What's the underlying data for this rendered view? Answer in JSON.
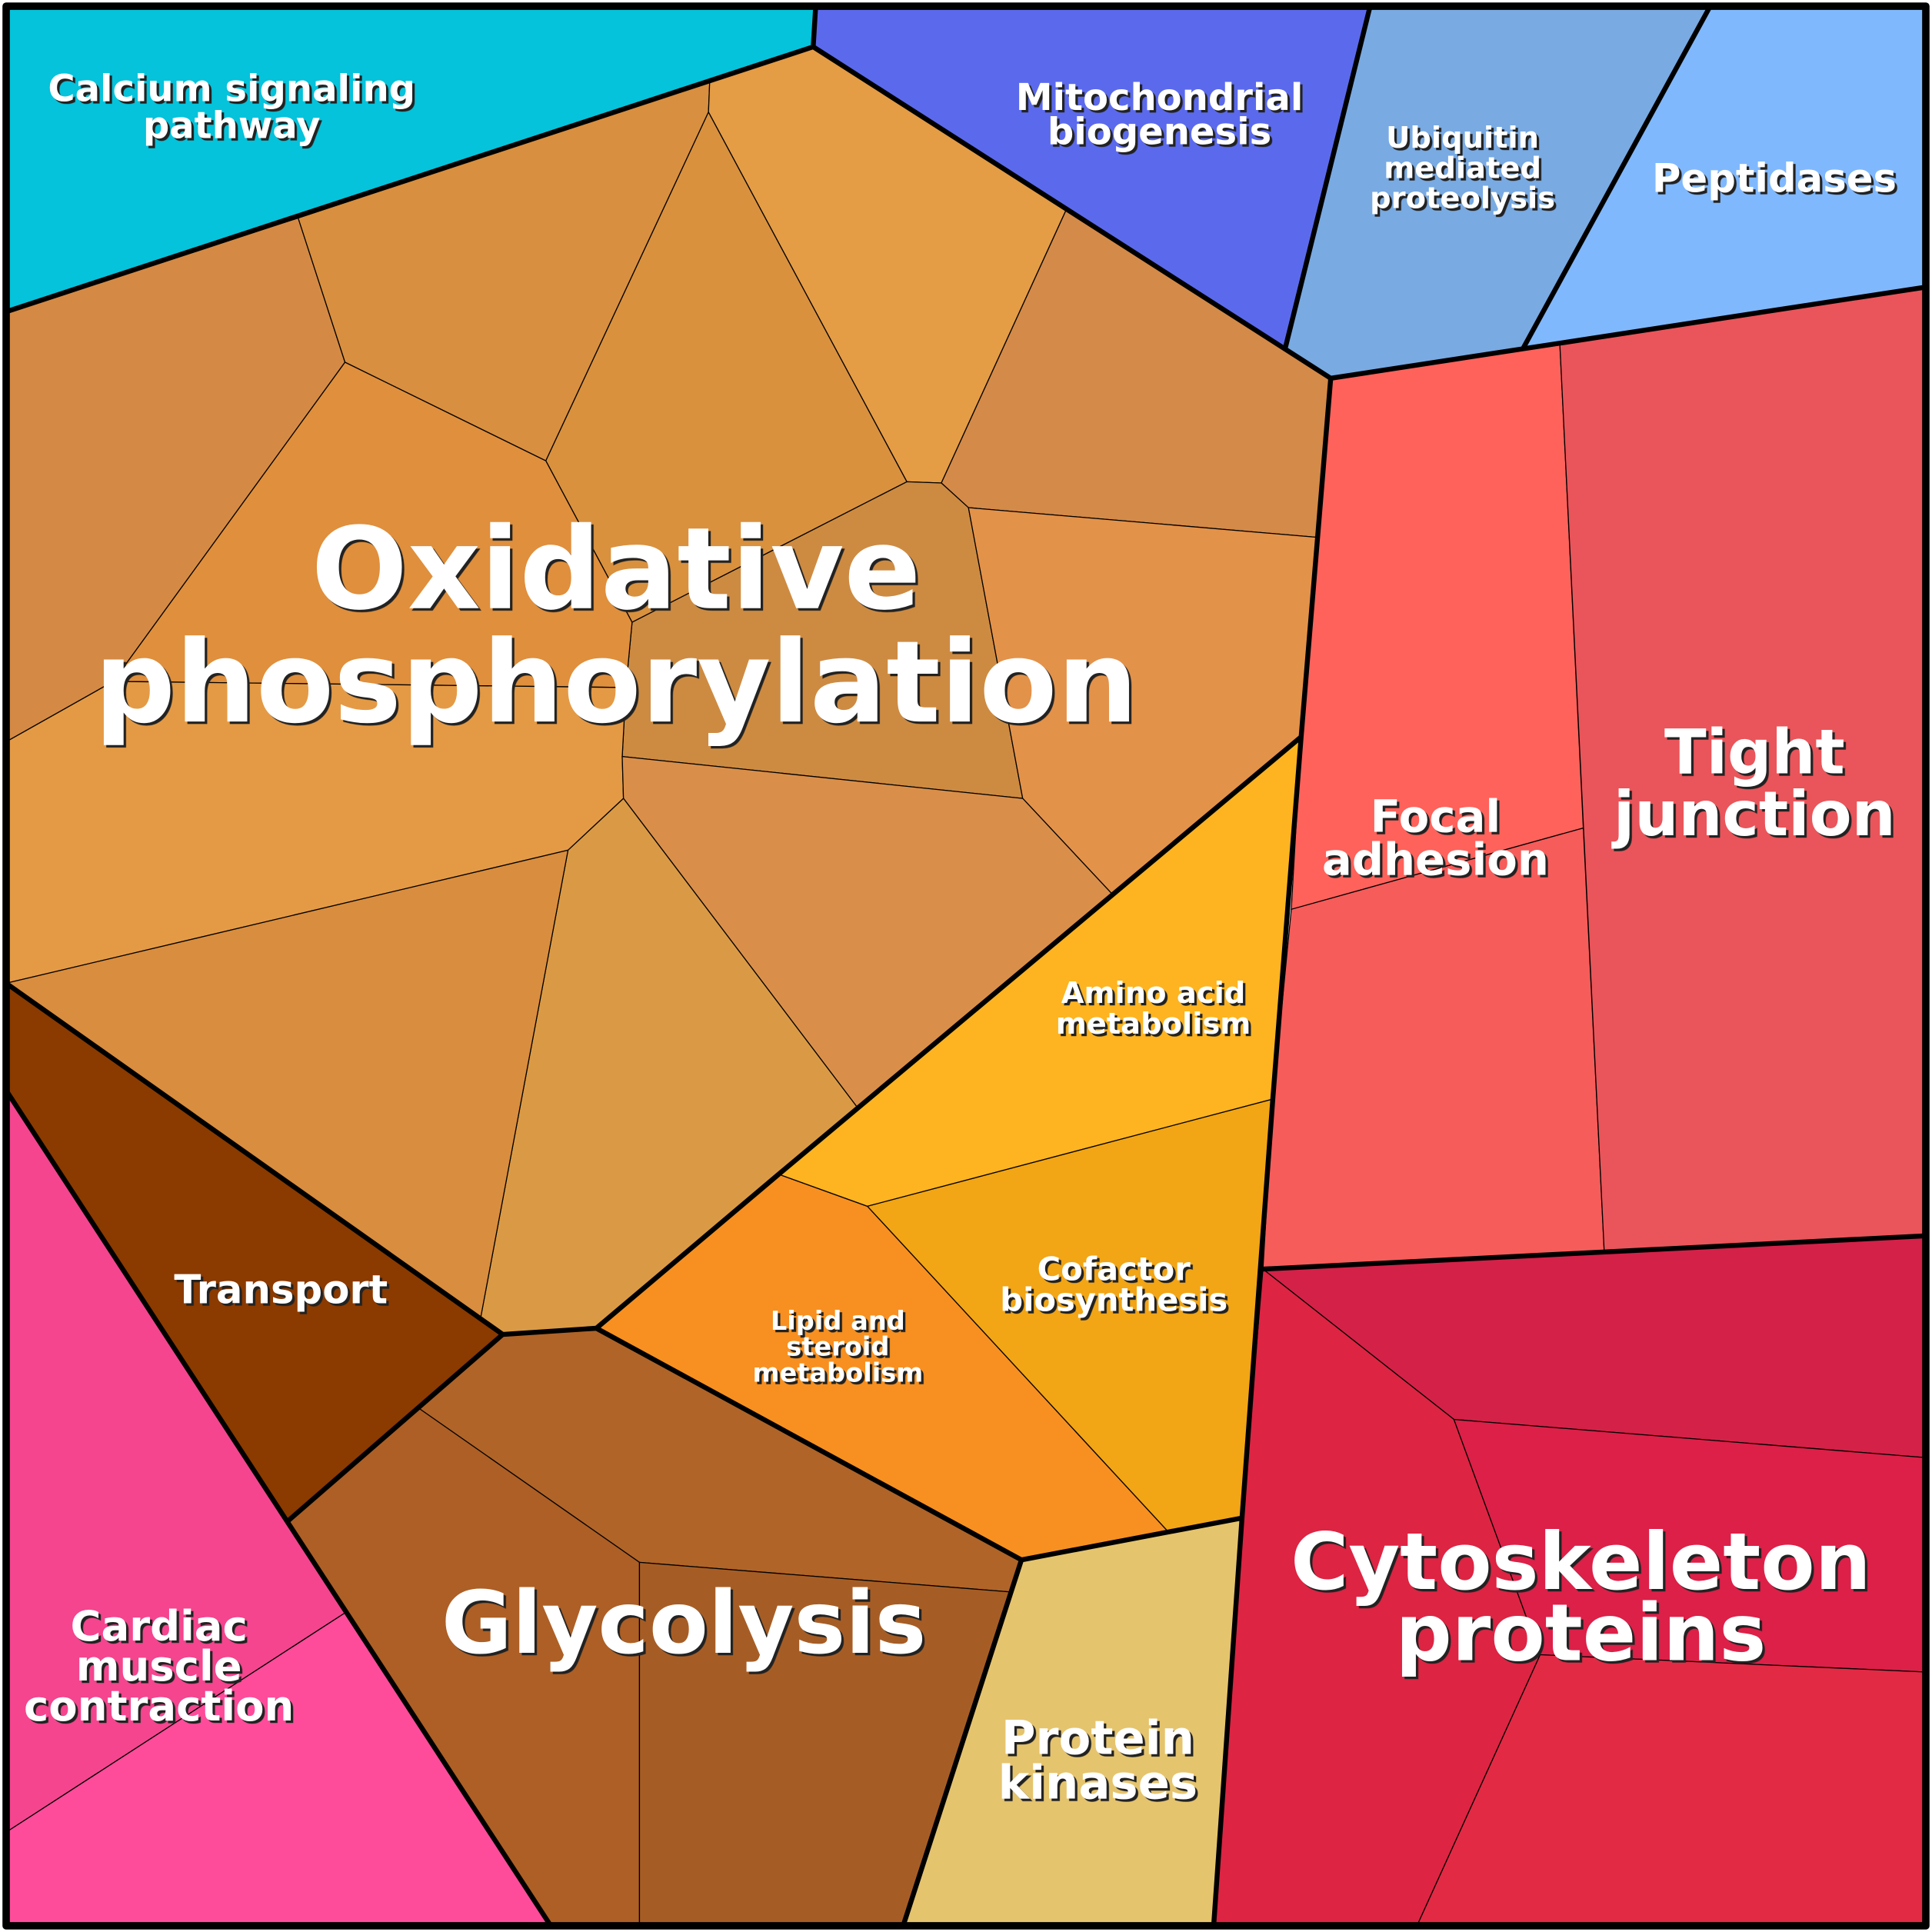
{
  "regions": [
    {
      "label": [
        "Calcium signaling",
        "pathway"
      ]
    },
    {
      "label": [
        "Mitochondrial",
        "biogenesis"
      ]
    },
    {
      "label": [
        "Ubiquitin",
        "mediated",
        "proteolysis"
      ]
    },
    {
      "label": [
        "Peptidases"
      ]
    },
    {
      "label": [
        "Oxidative",
        "phosphorylation"
      ]
    },
    {
      "label": [
        "Tight",
        "junction"
      ]
    },
    {
      "label": [
        "Focal",
        "adhesion"
      ]
    },
    {
      "label": [
        "Amino acid",
        "metabolism"
      ]
    },
    {
      "label": [
        "Cofactor",
        "biosynthesis"
      ]
    },
    {
      "label": [
        "Lipid and",
        "steroid",
        "metabolism"
      ]
    },
    {
      "label": [
        "Transport"
      ]
    },
    {
      "label": [
        "Cardiac",
        "muscle",
        "contraction"
      ]
    },
    {
      "label": [
        "Glycolysis"
      ]
    },
    {
      "label": [
        "Protein",
        "kinases"
      ]
    },
    {
      "label": [
        "Cytoskeleton",
        "proteins"
      ]
    }
  ]
}
